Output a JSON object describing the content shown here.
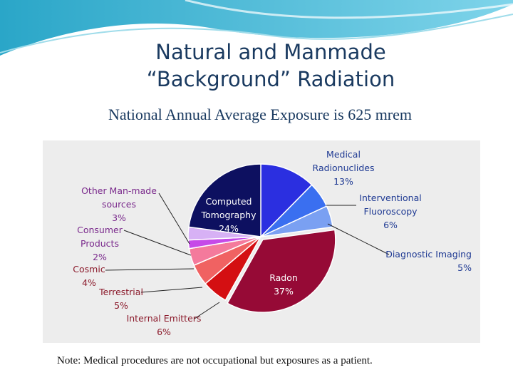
{
  "slide": {
    "title_line1": "Natural and Manmade",
    "title_line2": "“Background” Radiation",
    "subtitle": "National Annual  Average Exposure is 625 mrem",
    "note": "Note: Medical procedures are not occupational but exposures as a patient."
  },
  "chart_data": {
    "type": "pie",
    "title": "",
    "unit": "%",
    "slices": [
      {
        "label": "Medical Radionuclides",
        "value": 13,
        "color": "#2b2fe0",
        "text_color": "#1f3a93"
      },
      {
        "label": "Interventional Fluoroscopy",
        "value": 6,
        "color": "#3a6ff0",
        "text_color": "#1f3a93"
      },
      {
        "label": "Diagnostic Imaging",
        "value": 5,
        "color": "#7aa0f2",
        "text_color": "#1f3a93"
      },
      {
        "label": "Radon",
        "value": 37,
        "color": "#960a36",
        "text_color": "#ffffff"
      },
      {
        "label": "Internal Emitters",
        "value": 6,
        "color": "#d40f12",
        "text_color": "#8b1a2b"
      },
      {
        "label": "Terrestrial",
        "value": 5,
        "color": "#f06262",
        "text_color": "#8b1a2b"
      },
      {
        "label": "Cosmic",
        "value": 4,
        "color": "#f47a9c",
        "text_color": "#8b1a2b"
      },
      {
        "label": "Consumer Products",
        "value": 2,
        "color": "#c64ae8",
        "text_color": "#7a2a8c"
      },
      {
        "label": "Other Man-made sources",
        "value": 3,
        "color": "#d7b1f5",
        "text_color": "#7a2a8c"
      },
      {
        "label": "Computed Tomography",
        "value": 24,
        "color": "#0d1060",
        "text_color": "#ffffff"
      }
    ],
    "legend": "none"
  }
}
